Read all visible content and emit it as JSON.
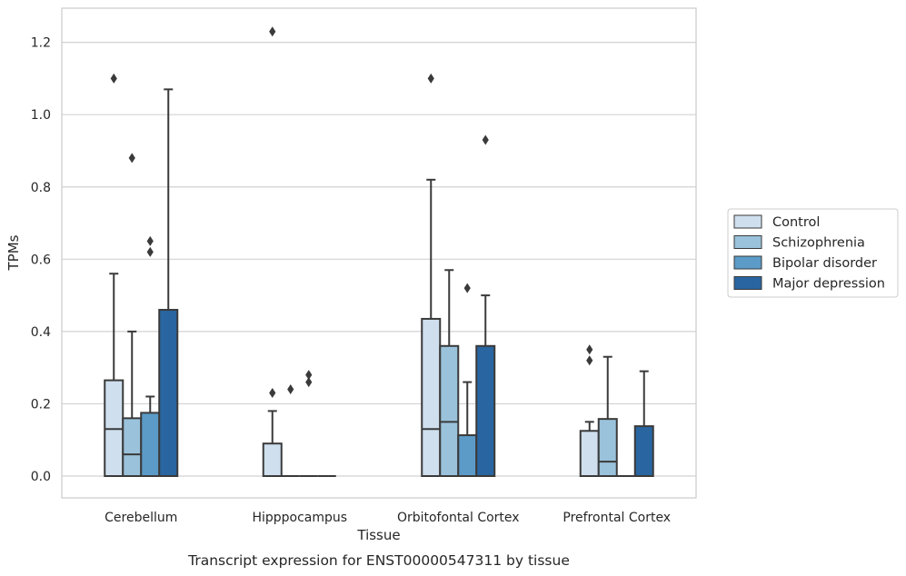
{
  "chart_data": {
    "type": "box",
    "xlabel": "Tissue",
    "ylabel": "TPMs",
    "caption": "Transcript expression for ENST00000547311 by tissue",
    "categories": [
      "Cerebellum",
      "Hipppocampus",
      "Orbitofontal Cortex",
      "Prefrontal Cortex"
    ],
    "ylim": [
      -0.06,
      1.295
    ],
    "yticks": [
      0.0,
      0.2,
      0.4,
      0.6,
      0.8,
      1.0,
      1.2
    ],
    "ytick_labels": [
      "0.0",
      "0.2",
      "0.4",
      "0.6",
      "0.8",
      "1.0",
      "1.2"
    ],
    "grid": "horizontal",
    "legend_position": "right",
    "series": [
      {
        "name": "Control",
        "color": "#cfdfee",
        "boxes": [
          {
            "q1": 0.0,
            "median": 0.13,
            "q3": 0.265,
            "whisker_low": 0.0,
            "whisker_high": 0.56,
            "outliers": [
              1.1
            ]
          },
          {
            "q1": 0.0,
            "median": 0.0,
            "q3": 0.09,
            "whisker_low": 0.0,
            "whisker_high": 0.18,
            "outliers": [
              0.23,
              1.23
            ]
          },
          {
            "q1": 0.0,
            "median": 0.13,
            "q3": 0.435,
            "whisker_low": 0.0,
            "whisker_high": 0.82,
            "outliers": [
              1.1
            ]
          },
          {
            "q1": 0.0,
            "median": 0.0,
            "q3": 0.125,
            "whisker_low": 0.0,
            "whisker_high": 0.15,
            "outliers": [
              0.32,
              0.35
            ]
          }
        ]
      },
      {
        "name": "Schizophrenia",
        "color": "#9ac2db",
        "boxes": [
          {
            "q1": 0.0,
            "median": 0.06,
            "q3": 0.16,
            "whisker_low": 0.0,
            "whisker_high": 0.4,
            "outliers": [
              0.88
            ]
          },
          {
            "q1": 0.0,
            "median": 0.0,
            "q3": 0.0,
            "whisker_low": 0.0,
            "whisker_high": 0.0,
            "outliers": [
              0.24
            ]
          },
          {
            "q1": 0.0,
            "median": 0.15,
            "q3": 0.36,
            "whisker_low": 0.0,
            "whisker_high": 0.57,
            "outliers": []
          },
          {
            "q1": 0.0,
            "median": 0.04,
            "q3": 0.158,
            "whisker_low": 0.0,
            "whisker_high": 0.33,
            "outliers": []
          }
        ]
      },
      {
        "name": "Bipolar disorder",
        "color": "#5c9bc7",
        "boxes": [
          {
            "q1": 0.0,
            "median": 0.0,
            "q3": 0.175,
            "whisker_low": 0.0,
            "whisker_high": 0.22,
            "outliers": [
              0.62,
              0.65
            ]
          },
          {
            "q1": 0.0,
            "median": 0.0,
            "q3": 0.0,
            "whisker_low": 0.0,
            "whisker_high": 0.0,
            "outliers": [
              0.26,
              0.28
            ]
          },
          {
            "q1": 0.0,
            "median": 0.0,
            "q3": 0.113,
            "whisker_low": 0.0,
            "whisker_high": 0.26,
            "outliers": [
              0.52
            ]
          },
          {
            "q1": 0.0,
            "median": 0.0,
            "q3": 0.0,
            "whisker_low": 0.0,
            "whisker_high": 0.0,
            "outliers": []
          }
        ]
      },
      {
        "name": "Major depression",
        "color": "#2965a0",
        "boxes": [
          {
            "q1": 0.0,
            "median": 0.0,
            "q3": 0.46,
            "whisker_low": 0.0,
            "whisker_high": 1.07,
            "outliers": []
          },
          {
            "q1": 0.0,
            "median": 0.0,
            "q3": 0.0,
            "whisker_low": 0.0,
            "whisker_high": 0.0,
            "outliers": []
          },
          {
            "q1": 0.0,
            "median": 0.0,
            "q3": 0.36,
            "whisker_low": 0.0,
            "whisker_high": 0.5,
            "outliers": [
              0.93
            ]
          },
          {
            "q1": 0.0,
            "median": 0.0,
            "q3": 0.138,
            "whisker_low": 0.0,
            "whisker_high": 0.29,
            "outliers": []
          }
        ]
      }
    ]
  }
}
